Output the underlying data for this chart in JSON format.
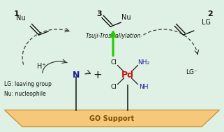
{
  "bg_color": "#dff0e4",
  "go_color": "#f5c87a",
  "go_edge_color": "#c8973a",
  "title_text": "Tsuji-Trost allylation",
  "go_label": "GO Support",
  "lg_def": "LG: leaving group",
  "nu_def": "Nu: nucleophile",
  "pd_color": "#cc1111",
  "n_color": "#1a1a99",
  "nh_color": "#1a1a99",
  "nh2_color": "#1a1a99",
  "arrow_green": "#22cc00",
  "dashed_color": "#333333",
  "text_color": "#111111",
  "fig_width": 3.21,
  "fig_height": 1.89
}
